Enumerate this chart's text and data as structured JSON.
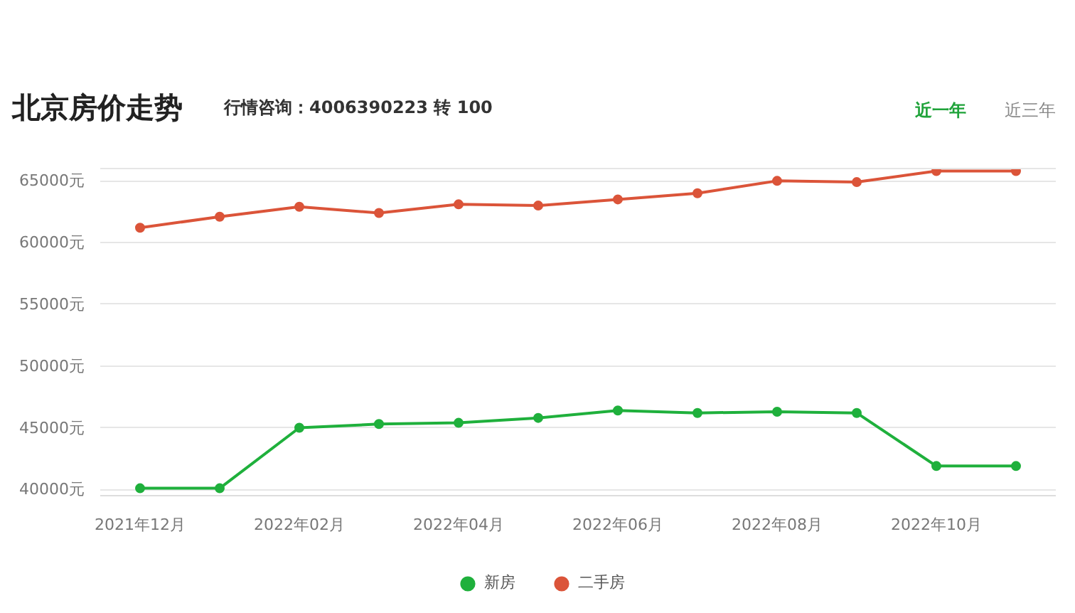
{
  "chart_data": {
    "type": "line",
    "title": "北京房价走势",
    "subtitle": "行情咨询：4006390223 转 100",
    "annotations": [
      "近一年",
      "近三年"
    ],
    "categories": [
      "2021年12月",
      null,
      "2022年02月",
      null,
      "2022年04月",
      null,
      "2022年06月",
      null,
      "2022年08月",
      null,
      "2022年10月",
      null
    ],
    "series": [
      {
        "name": "新房",
        "color": "#1fb03c",
        "values": [
          40100,
          40100,
          45000,
          45300,
          45400,
          45800,
          46400,
          46200,
          46300,
          46200,
          41900,
          41900
        ]
      },
      {
        "name": "二手房",
        "color": "#db5439",
        "values": [
          61200,
          62100,
          62900,
          62400,
          63100,
          63000,
          63500,
          64000,
          65000,
          64900,
          65800,
          65800
        ]
      }
    ],
    "ylim": [
      39500,
      66000
    ],
    "yticks": [
      {
        "value": 40000,
        "label": "40000元"
      },
      {
        "value": 45000,
        "label": "45000元"
      },
      {
        "value": 50000,
        "label": "50000元"
      },
      {
        "value": 55000,
        "label": "55000元"
      },
      {
        "value": 60000,
        "label": "60000元"
      },
      {
        "value": 65000,
        "label": "65000元"
      }
    ],
    "grid": "y",
    "legend": "bottom",
    "marker": "circle",
    "line_style": "solid"
  }
}
